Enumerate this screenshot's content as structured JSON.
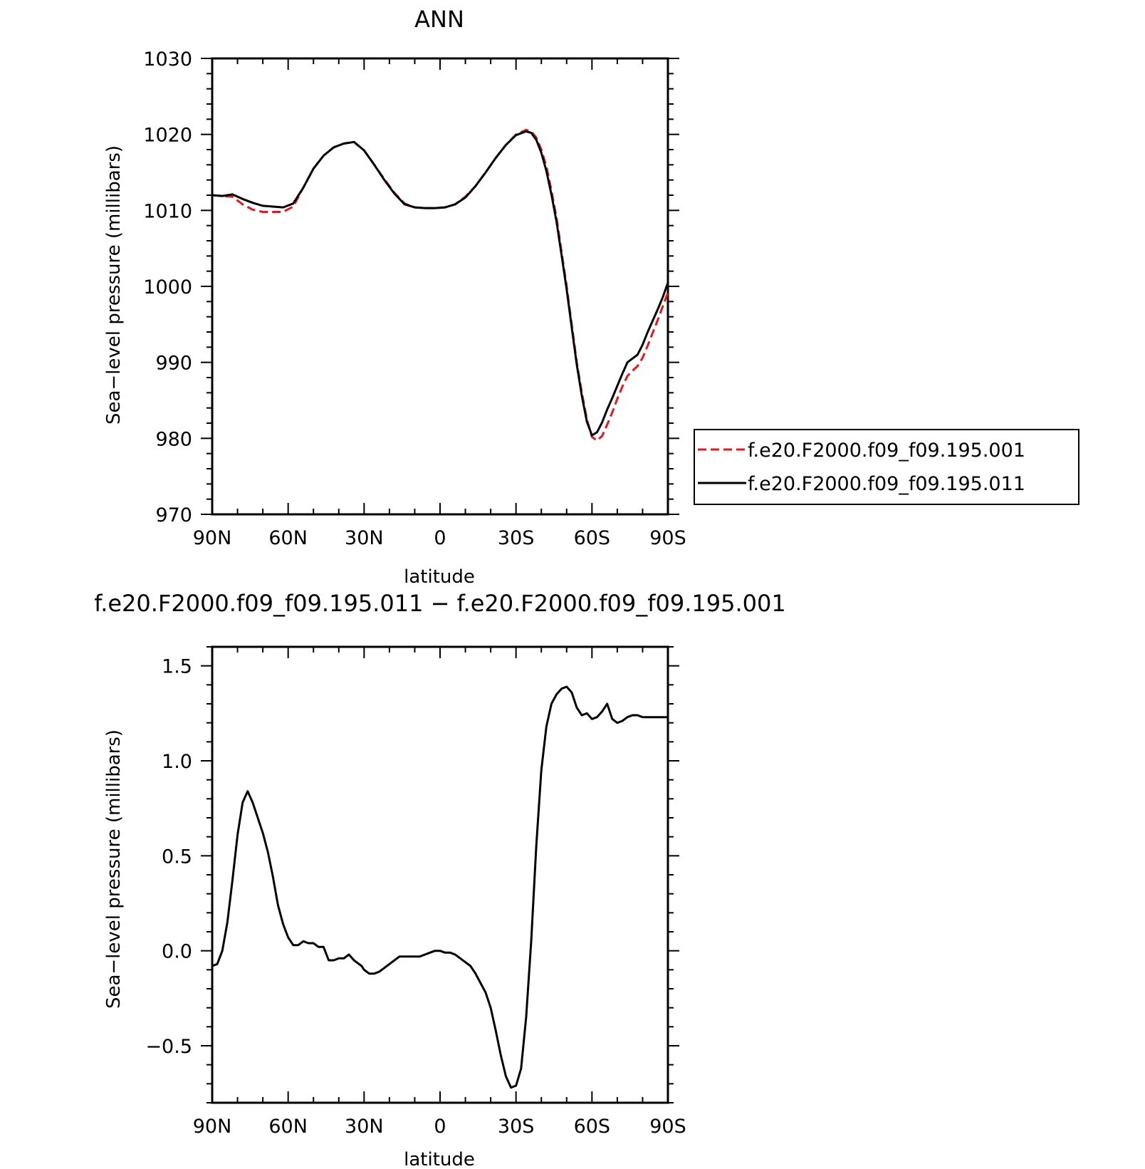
{
  "chart_data": [
    {
      "type": "line",
      "title": "ANN",
      "xlabel": "latitude",
      "ylabel": "Sea−level pressure (millibars)",
      "xlim": [
        90,
        -90
      ],
      "ylim": [
        970,
        1030
      ],
      "x_ticks": [
        90,
        60,
        30,
        0,
        -30,
        -60,
        -90
      ],
      "x_tick_labels": [
        "90N",
        "60N",
        "30N",
        "0",
        "30S",
        "60S",
        "90S"
      ],
      "y_ticks": [
        970,
        980,
        990,
        1000,
        1010,
        1020,
        1030
      ],
      "y_tick_labels": [
        "970",
        "980",
        "990",
        "1000",
        "1010",
        "1020",
        "1030"
      ],
      "legend": "right",
      "series": [
        {
          "name": "f.e20.F2000.f09_f09.195.001",
          "color": "#e8161b",
          "dash": "dashed",
          "x": [
            90,
            86,
            82,
            78,
            74,
            70,
            66,
            62,
            58,
            54,
            50,
            46,
            42,
            38,
            34,
            30,
            26,
            22,
            18,
            14,
            10,
            6,
            2,
            -2,
            -6,
            -10,
            -14,
            -18,
            -22,
            -26,
            -30,
            -34,
            -36,
            -38,
            -40,
            -42,
            -44,
            -46,
            -48,
            -50,
            -52,
            -54,
            -56,
            -58,
            -60,
            -62,
            -64,
            -66,
            -68,
            -70,
            -72,
            -74,
            -76,
            -78,
            -80,
            -82,
            -84,
            -86,
            -88,
            -90
          ],
          "y": [
            1012.0,
            1011.9,
            1011.8,
            1010.8,
            1010.1,
            1009.8,
            1009.8,
            1009.8,
            1010.5,
            1013.0,
            1015.5,
            1017.2,
            1018.3,
            1018.8,
            1019.0,
            1017.9,
            1016.0,
            1014.1,
            1012.3,
            1010.9,
            1010.4,
            1010.3,
            1010.3,
            1010.4,
            1010.8,
            1011.8,
            1013.2,
            1015.0,
            1016.9,
            1018.6,
            1020.0,
            1020.6,
            1020.4,
            1019.6,
            1018.0,
            1015.8,
            1012.6,
            1009.0,
            1004.5,
            1000.0,
            995.0,
            990.0,
            986.0,
            982.5,
            980.2,
            979.7,
            980.3,
            981.8,
            983.4,
            985.2,
            986.8,
            988.2,
            988.9,
            989.5,
            990.6,
            992.2,
            993.9,
            995.6,
            997.4,
            999.2
          ]
        },
        {
          "name": "f.e20.F2000.f09_f09.195.011",
          "color": "#000000",
          "dash": "solid",
          "x": [
            90,
            86,
            82,
            78,
            74,
            70,
            66,
            62,
            58,
            54,
            50,
            46,
            42,
            38,
            34,
            30,
            26,
            22,
            18,
            14,
            10,
            6,
            2,
            -2,
            -6,
            -10,
            -14,
            -18,
            -22,
            -26,
            -30,
            -34,
            -36,
            -38,
            -40,
            -42,
            -44,
            -46,
            -48,
            -50,
            -52,
            -54,
            -56,
            -58,
            -60,
            -62,
            -64,
            -66,
            -68,
            -70,
            -72,
            -74,
            -76,
            -78,
            -80,
            -82,
            -84,
            -86,
            -88,
            -90
          ],
          "y": [
            1012.0,
            1011.9,
            1012.1,
            1011.5,
            1011.0,
            1010.6,
            1010.5,
            1010.4,
            1010.9,
            1013.0,
            1015.5,
            1017.2,
            1018.3,
            1018.8,
            1019.0,
            1017.9,
            1016.0,
            1014.0,
            1012.2,
            1010.8,
            1010.4,
            1010.3,
            1010.3,
            1010.4,
            1010.8,
            1011.7,
            1013.2,
            1015.0,
            1016.9,
            1018.6,
            1019.9,
            1020.4,
            1020.2,
            1019.3,
            1017.6,
            1015.2,
            1012.1,
            1008.5,
            1004.1,
            999.6,
            994.6,
            989.7,
            985.6,
            982.2,
            980.4,
            980.8,
            982.1,
            983.8,
            985.3,
            986.9,
            988.5,
            990.0,
            990.5,
            991.0,
            992.3,
            994.0,
            995.5,
            997.0,
            998.6,
            1000.5
          ]
        }
      ]
    },
    {
      "type": "line",
      "title": "f.e20.F2000.f09_f09.195.011 − f.e20.F2000.f09_f09.195.001",
      "xlabel": "latitude",
      "ylabel": "Sea−level pressure (millibars)",
      "xlim": [
        90,
        -90
      ],
      "ylim": [
        -0.8,
        1.6
      ],
      "x_ticks": [
        90,
        60,
        30,
        0,
        -30,
        -60,
        -90
      ],
      "x_tick_labels": [
        "90N",
        "60N",
        "30N",
        "0",
        "30S",
        "60S",
        "90S"
      ],
      "y_ticks": [
        -0.5,
        0.0,
        0.5,
        1.0,
        1.5
      ],
      "y_tick_labels": [
        "−0.5",
        "0.0",
        "0.5",
        "1.0",
        "1.5"
      ],
      "series": [
        {
          "color": "#000000",
          "dash": "solid",
          "x": [
            90,
            88,
            86,
            84,
            82,
            80,
            78,
            76,
            74,
            72,
            70,
            68,
            66,
            64,
            62,
            60,
            58,
            56,
            54,
            52,
            50,
            48,
            46,
            44,
            42,
            40,
            38,
            36,
            34,
            33,
            32,
            31,
            30,
            29,
            28,
            26,
            24,
            22,
            20,
            18,
            16,
            14,
            12,
            10,
            8,
            6,
            4,
            2,
            0,
            -2,
            -4,
            -6,
            -8,
            -10,
            -12,
            -14,
            -16,
            -18,
            -20,
            -22,
            -24,
            -26,
            -28,
            -30,
            -32,
            -34,
            -36,
            -38,
            -40,
            -42,
            -44,
            -46,
            -48,
            -50,
            -52,
            -54,
            -56,
            -58,
            -60,
            -62,
            -64,
            -66,
            -68,
            -70,
            -72,
            -74,
            -76,
            -78,
            -80,
            -82,
            -84,
            -86,
            -88,
            -90
          ],
          "y": [
            -0.08,
            -0.07,
            0.0,
            0.15,
            0.37,
            0.61,
            0.78,
            0.84,
            0.78,
            0.7,
            0.62,
            0.52,
            0.39,
            0.24,
            0.14,
            0.07,
            0.03,
            0.03,
            0.05,
            0.04,
            0.04,
            0.02,
            0.02,
            -0.05,
            -0.05,
            -0.04,
            -0.04,
            -0.02,
            -0.05,
            -0.06,
            -0.07,
            -0.08,
            -0.1,
            -0.11,
            -0.12,
            -0.12,
            -0.11,
            -0.09,
            -0.07,
            -0.05,
            -0.03,
            -0.03,
            -0.03,
            -0.03,
            -0.03,
            -0.02,
            -0.01,
            0.0,
            0.0,
            -0.01,
            -0.01,
            -0.02,
            -0.04,
            -0.06,
            -0.08,
            -0.12,
            -0.17,
            -0.22,
            -0.3,
            -0.42,
            -0.55,
            -0.66,
            -0.72,
            -0.71,
            -0.62,
            -0.35,
            0.05,
            0.55,
            0.95,
            1.18,
            1.3,
            1.35,
            1.38,
            1.39,
            1.36,
            1.28,
            1.24,
            1.25,
            1.22,
            1.23,
            1.26,
            1.3,
            1.22,
            1.2,
            1.21,
            1.23,
            1.24,
            1.24,
            1.23,
            1.23,
            1.23,
            1.23,
            1.23,
            1.23
          ]
        }
      ]
    }
  ]
}
